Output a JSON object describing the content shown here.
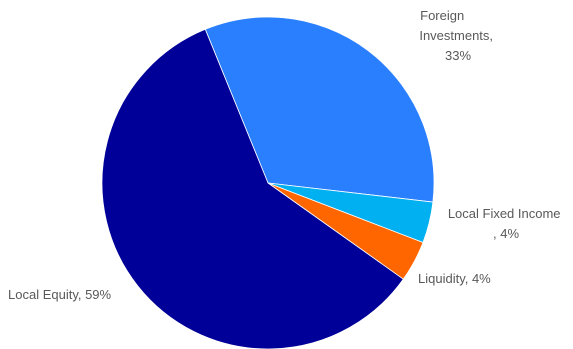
{
  "chart_data": {
    "type": "pie",
    "title": "",
    "legend": "none",
    "slices": [
      {
        "label_lines": [
          "Foreign",
          "Investments,",
          "33%"
        ],
        "category": "Foreign Investments",
        "value": 33,
        "color": "#2A7FFF"
      },
      {
        "label_lines": [
          "Local Fixed Income",
          ", 4%"
        ],
        "category": "Local Fixed Income",
        "value": 4,
        "color": "#00B0F0"
      },
      {
        "label_lines": [
          "Liquidity, 4%"
        ],
        "category": "Liquidity",
        "value": 4,
        "color": "#FF6600"
      },
      {
        "label_lines": [
          "Local Equity, 59%"
        ],
        "category": "Local Equity",
        "value": 59,
        "color": "#000099"
      }
    ]
  }
}
